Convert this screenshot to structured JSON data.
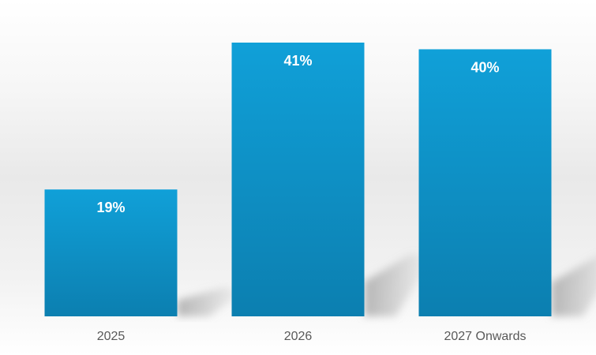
{
  "chart_data": {
    "type": "bar",
    "categories": [
      "2025",
      "2026",
      "2027 Onwards"
    ],
    "values": [
      19,
      41,
      40
    ],
    "data_labels": [
      "19%",
      "41%",
      "40%"
    ],
    "value_unit": "%",
    "title": "",
    "xlabel": "",
    "ylabel": "",
    "ylim": [
      0,
      41
    ],
    "grid": false,
    "legend": "none",
    "colors": {
      "bar_top": "#10A0D8",
      "bar_bottom": "#0C7FB0",
      "data_label": "#FFFFFF",
      "category_label": "#595959",
      "shadow": "#9A9A9A"
    }
  }
}
